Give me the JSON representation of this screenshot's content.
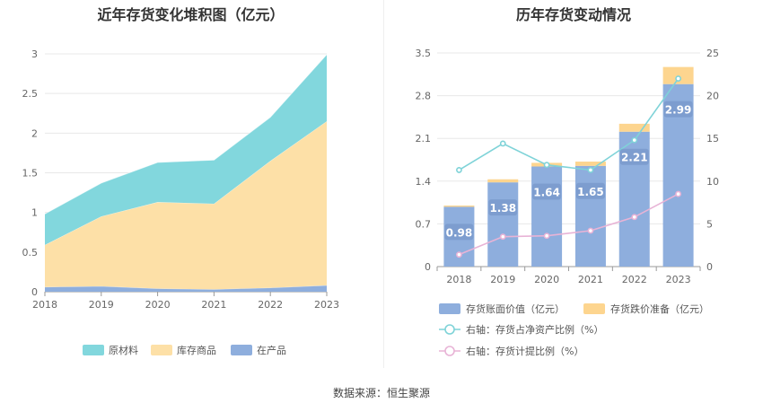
{
  "colors": {
    "raw_material": "#82d7dd",
    "finished_goods": "#fde0a7",
    "wip": "#8eaedd",
    "book_value_bar": "#8eaedd",
    "impairment_bar": "#fdd58f",
    "ratio_line": "#7fd3d8",
    "provision_line": "#e8b3d6",
    "grid": "#e8e8e8",
    "axis": "#999999"
  },
  "source": "数据来源：恒生聚源",
  "chart_data": [
    {
      "type": "area",
      "stacked": true,
      "title": "近年存货变化堆积图（亿元）",
      "x": [
        "2018",
        "2019",
        "2020",
        "2021",
        "2022",
        "2023"
      ],
      "ylim": [
        0,
        3
      ],
      "yticks": [
        "0",
        "0.5",
        "1",
        "1.5",
        "2",
        "2.5",
        "3"
      ],
      "grid": true,
      "legend_position": "bottom",
      "series": [
        {
          "name": "原材料",
          "values": [
            0.39,
            0.42,
            0.5,
            0.55,
            0.55,
            0.84
          ]
        },
        {
          "name": "库存商品",
          "values": [
            0.53,
            0.88,
            1.09,
            1.08,
            1.6,
            2.07
          ]
        },
        {
          "name": "在产品",
          "values": [
            0.06,
            0.07,
            0.04,
            0.03,
            0.05,
            0.08
          ]
        }
      ]
    },
    {
      "type": "bar",
      "stacked": true,
      "title": "历年存货变动情况",
      "categories": [
        "2018",
        "2019",
        "2020",
        "2021",
        "2022",
        "2023"
      ],
      "ylim_left": [
        0,
        3.5
      ],
      "yticks_left": [
        "0",
        "0.7",
        "1.4",
        "2.1",
        "2.8",
        "3.5"
      ],
      "ylim_right": [
        0,
        25
      ],
      "yticks_right": [
        "0",
        "5",
        "10",
        "15",
        "20",
        "25"
      ],
      "grid": true,
      "legend_position": "bottom",
      "series": [
        {
          "name": "存货账面价值（亿元）",
          "values": [
            0.98,
            1.38,
            1.64,
            1.65,
            2.21,
            2.99
          ],
          "labels": [
            "0.98",
            "1.38",
            "1.64",
            "1.65",
            "2.21",
            "2.99"
          ]
        },
        {
          "name": "存货跌价准备（亿元）",
          "values": [
            0.02,
            0.05,
            0.06,
            0.07,
            0.13,
            0.28
          ]
        }
      ],
      "lines": [
        {
          "name": "右轴：存货占净资产比例（%）",
          "axis": "right",
          "values": [
            11.3,
            14.4,
            11.9,
            11.3,
            14.8,
            22.0
          ]
        },
        {
          "name": "右轴：存货计提比例（%）",
          "axis": "right",
          "values": [
            1.4,
            3.5,
            3.6,
            4.2,
            5.8,
            8.5
          ]
        }
      ]
    }
  ]
}
